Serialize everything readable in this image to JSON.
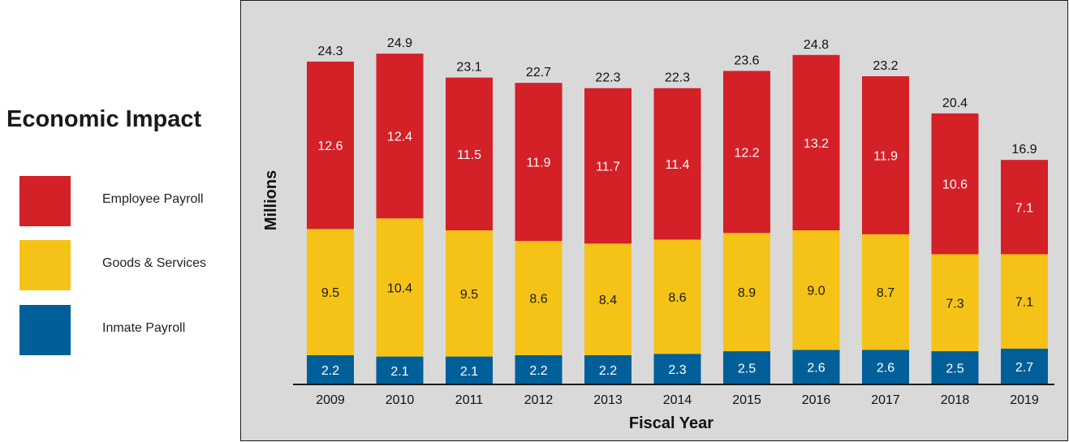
{
  "legend": {
    "title": "Economic Impact",
    "items": [
      {
        "label": "Employee Payroll",
        "color": "#d42027"
      },
      {
        "label": "Goods & Services",
        "color": "#f5c317"
      },
      {
        "label": "Inmate Payroll",
        "color": "#005f99"
      }
    ]
  },
  "chart_data": {
    "type": "bar",
    "stacked": true,
    "title": "Economic Impact",
    "xlabel": "Fiscal Year",
    "ylabel": "Millions",
    "categories": [
      "2009",
      "2010",
      "2011",
      "2012",
      "2013",
      "2014",
      "2015",
      "2016",
      "2017",
      "2018",
      "2019"
    ],
    "series": [
      {
        "name": "Inmate Payroll",
        "color": "#005f99",
        "label_color": "#ffffff",
        "values": [
          2.2,
          2.1,
          2.1,
          2.2,
          2.2,
          2.3,
          2.5,
          2.6,
          2.6,
          2.5,
          2.7
        ]
      },
      {
        "name": "Goods & Services",
        "color": "#f5c317",
        "label_color": "#1a1a1a",
        "values": [
          9.5,
          10.4,
          9.5,
          8.6,
          8.4,
          8.6,
          8.9,
          9.0,
          8.7,
          7.3,
          7.1
        ]
      },
      {
        "name": "Employee Payroll",
        "color": "#d42027",
        "label_color": "#ffffff",
        "values": [
          12.6,
          12.4,
          11.5,
          11.9,
          11.7,
          11.4,
          12.2,
          13.2,
          11.9,
          10.6,
          7.1
        ]
      }
    ],
    "totals": [
      24.3,
      24.9,
      23.1,
      22.7,
      22.3,
      22.3,
      23.6,
      24.8,
      23.2,
      20.4,
      16.9
    ],
    "ylim": [
      0,
      26
    ],
    "grid": false,
    "legend_position": "left"
  }
}
